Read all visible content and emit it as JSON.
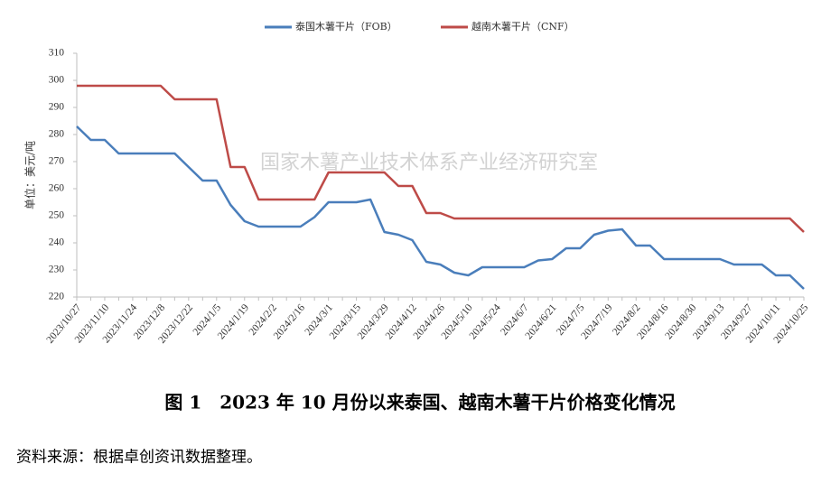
{
  "chart_data": {
    "type": "line",
    "watermark": "国家木薯产业技术体系产业经济研究室",
    "y_label": "单位：美元/吨",
    "caption": "图 1　2023 年 10 月份以来泰国、越南木薯干片价格变化情况",
    "source": "资料来源：根据卓创资讯数据整理。",
    "categories": [
      "2023/10/27",
      null,
      "2023/11/10",
      null,
      "2023/11/24",
      null,
      "2023/12/8",
      null,
      "2023/12/22",
      null,
      "2024/1/5",
      null,
      "2024/1/19",
      null,
      "2024/2/2",
      null,
      "2024/2/16",
      null,
      "2024/3/1",
      null,
      "2024/3/15",
      null,
      "2024/3/29",
      null,
      "2024/4/12",
      null,
      "2024/4/26",
      null,
      "2024/5/10",
      null,
      "2024/5/24",
      null,
      "2024/6/7",
      null,
      "2024/6/21",
      null,
      "2024/7/5",
      null,
      "2024/7/19",
      null,
      "2024/8/2",
      null,
      "2024/8/16",
      null,
      "2024/8/30",
      null,
      "2024/9/13",
      null,
      "2024/9/27",
      null,
      "2024/10/11",
      null,
      "2024/10/25"
    ],
    "series": [
      {
        "name": "泰国木薯干片（FOB）",
        "color": "#4a7ebb",
        "values": [
          283,
          278,
          278,
          273,
          273,
          273,
          273,
          273,
          268,
          263,
          263,
          254,
          248,
          246,
          246,
          246,
          246,
          249.5,
          255,
          255,
          255,
          256,
          244,
          243,
          241,
          233,
          232,
          229,
          228,
          231,
          231,
          231,
          231,
          233.5,
          234,
          238,
          238,
          243,
          244.5,
          245,
          239,
          239,
          234,
          234,
          234,
          234,
          234,
          232,
          232,
          232,
          228,
          228,
          223
        ]
      },
      {
        "name": "越南木薯干片（CNF）",
        "color": "#be4b48",
        "values": [
          298,
          298,
          298,
          298,
          298,
          298,
          298,
          293,
          293,
          293,
          293,
          268,
          268,
          256,
          256,
          256,
          256,
          256,
          266,
          266,
          266,
          266,
          266,
          261,
          261,
          251,
          251,
          249,
          249,
          249,
          249,
          249,
          249,
          249,
          249,
          249,
          249,
          249,
          249,
          249,
          249,
          249,
          249,
          249,
          249,
          249,
          249,
          249,
          249,
          249,
          249,
          249,
          244
        ]
      }
    ],
    "ylim": [
      220,
      310
    ],
    "yticks": [
      220,
      230,
      240,
      250,
      260,
      270,
      280,
      290,
      300,
      310
    ],
    "grid": false,
    "legend": "top"
  }
}
